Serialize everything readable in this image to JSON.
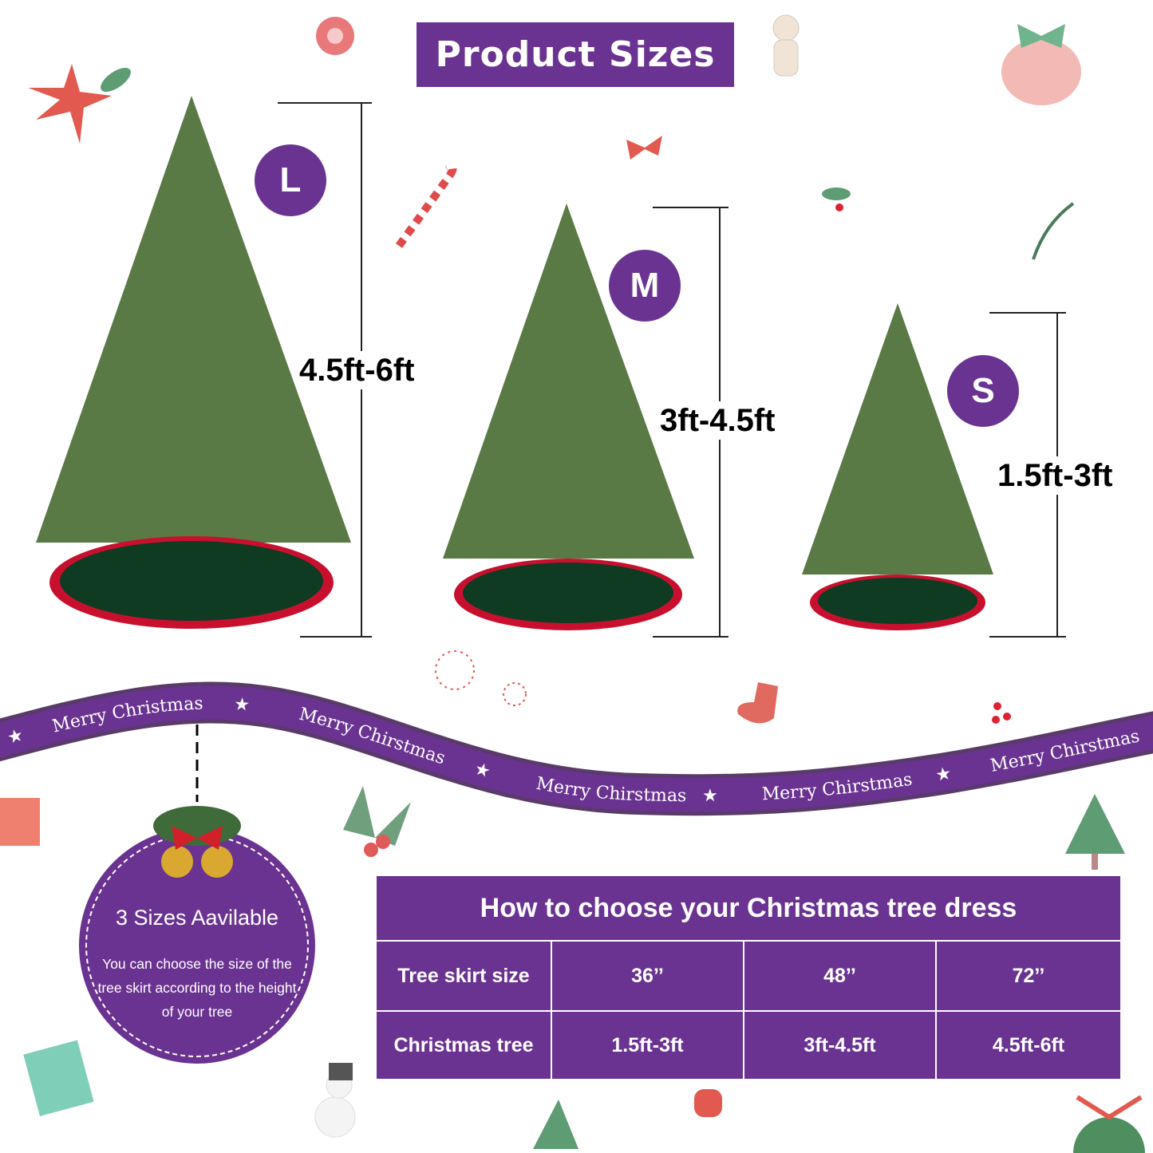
{
  "title": "Product Sizes",
  "sizes": [
    {
      "badge": "L",
      "range": "4.5ft-6ft"
    },
    {
      "badge": "M",
      "range": "3ft-4.5ft"
    },
    {
      "badge": "S",
      "range": "1.5ft-3ft"
    }
  ],
  "ribbon": [
    "Merry Christmas",
    "Merry Chirstmas",
    "Merry Chirstmas",
    "Merry Chirstmas",
    "Merry Chirstmas"
  ],
  "info": {
    "heading": "3 Sizes Aavilable",
    "text": "You can choose the size of the tree skirt according to the height of your tree"
  },
  "table": {
    "title": "How to choose your Christmas tree dress",
    "rows": [
      {
        "label": "Tree skirt size",
        "values": [
          "36’’",
          "48’’",
          "72’’"
        ]
      },
      {
        "label": "Christmas tree",
        "values": [
          "1.5ft-3ft",
          "3ft-4.5ft",
          "4.5ft-6ft"
        ]
      }
    ]
  },
  "colors": {
    "purple": "#6a3391",
    "skirt_red": "#c8102e",
    "skirt_green": "#0f3b22",
    "tree": "#5a7a45"
  }
}
